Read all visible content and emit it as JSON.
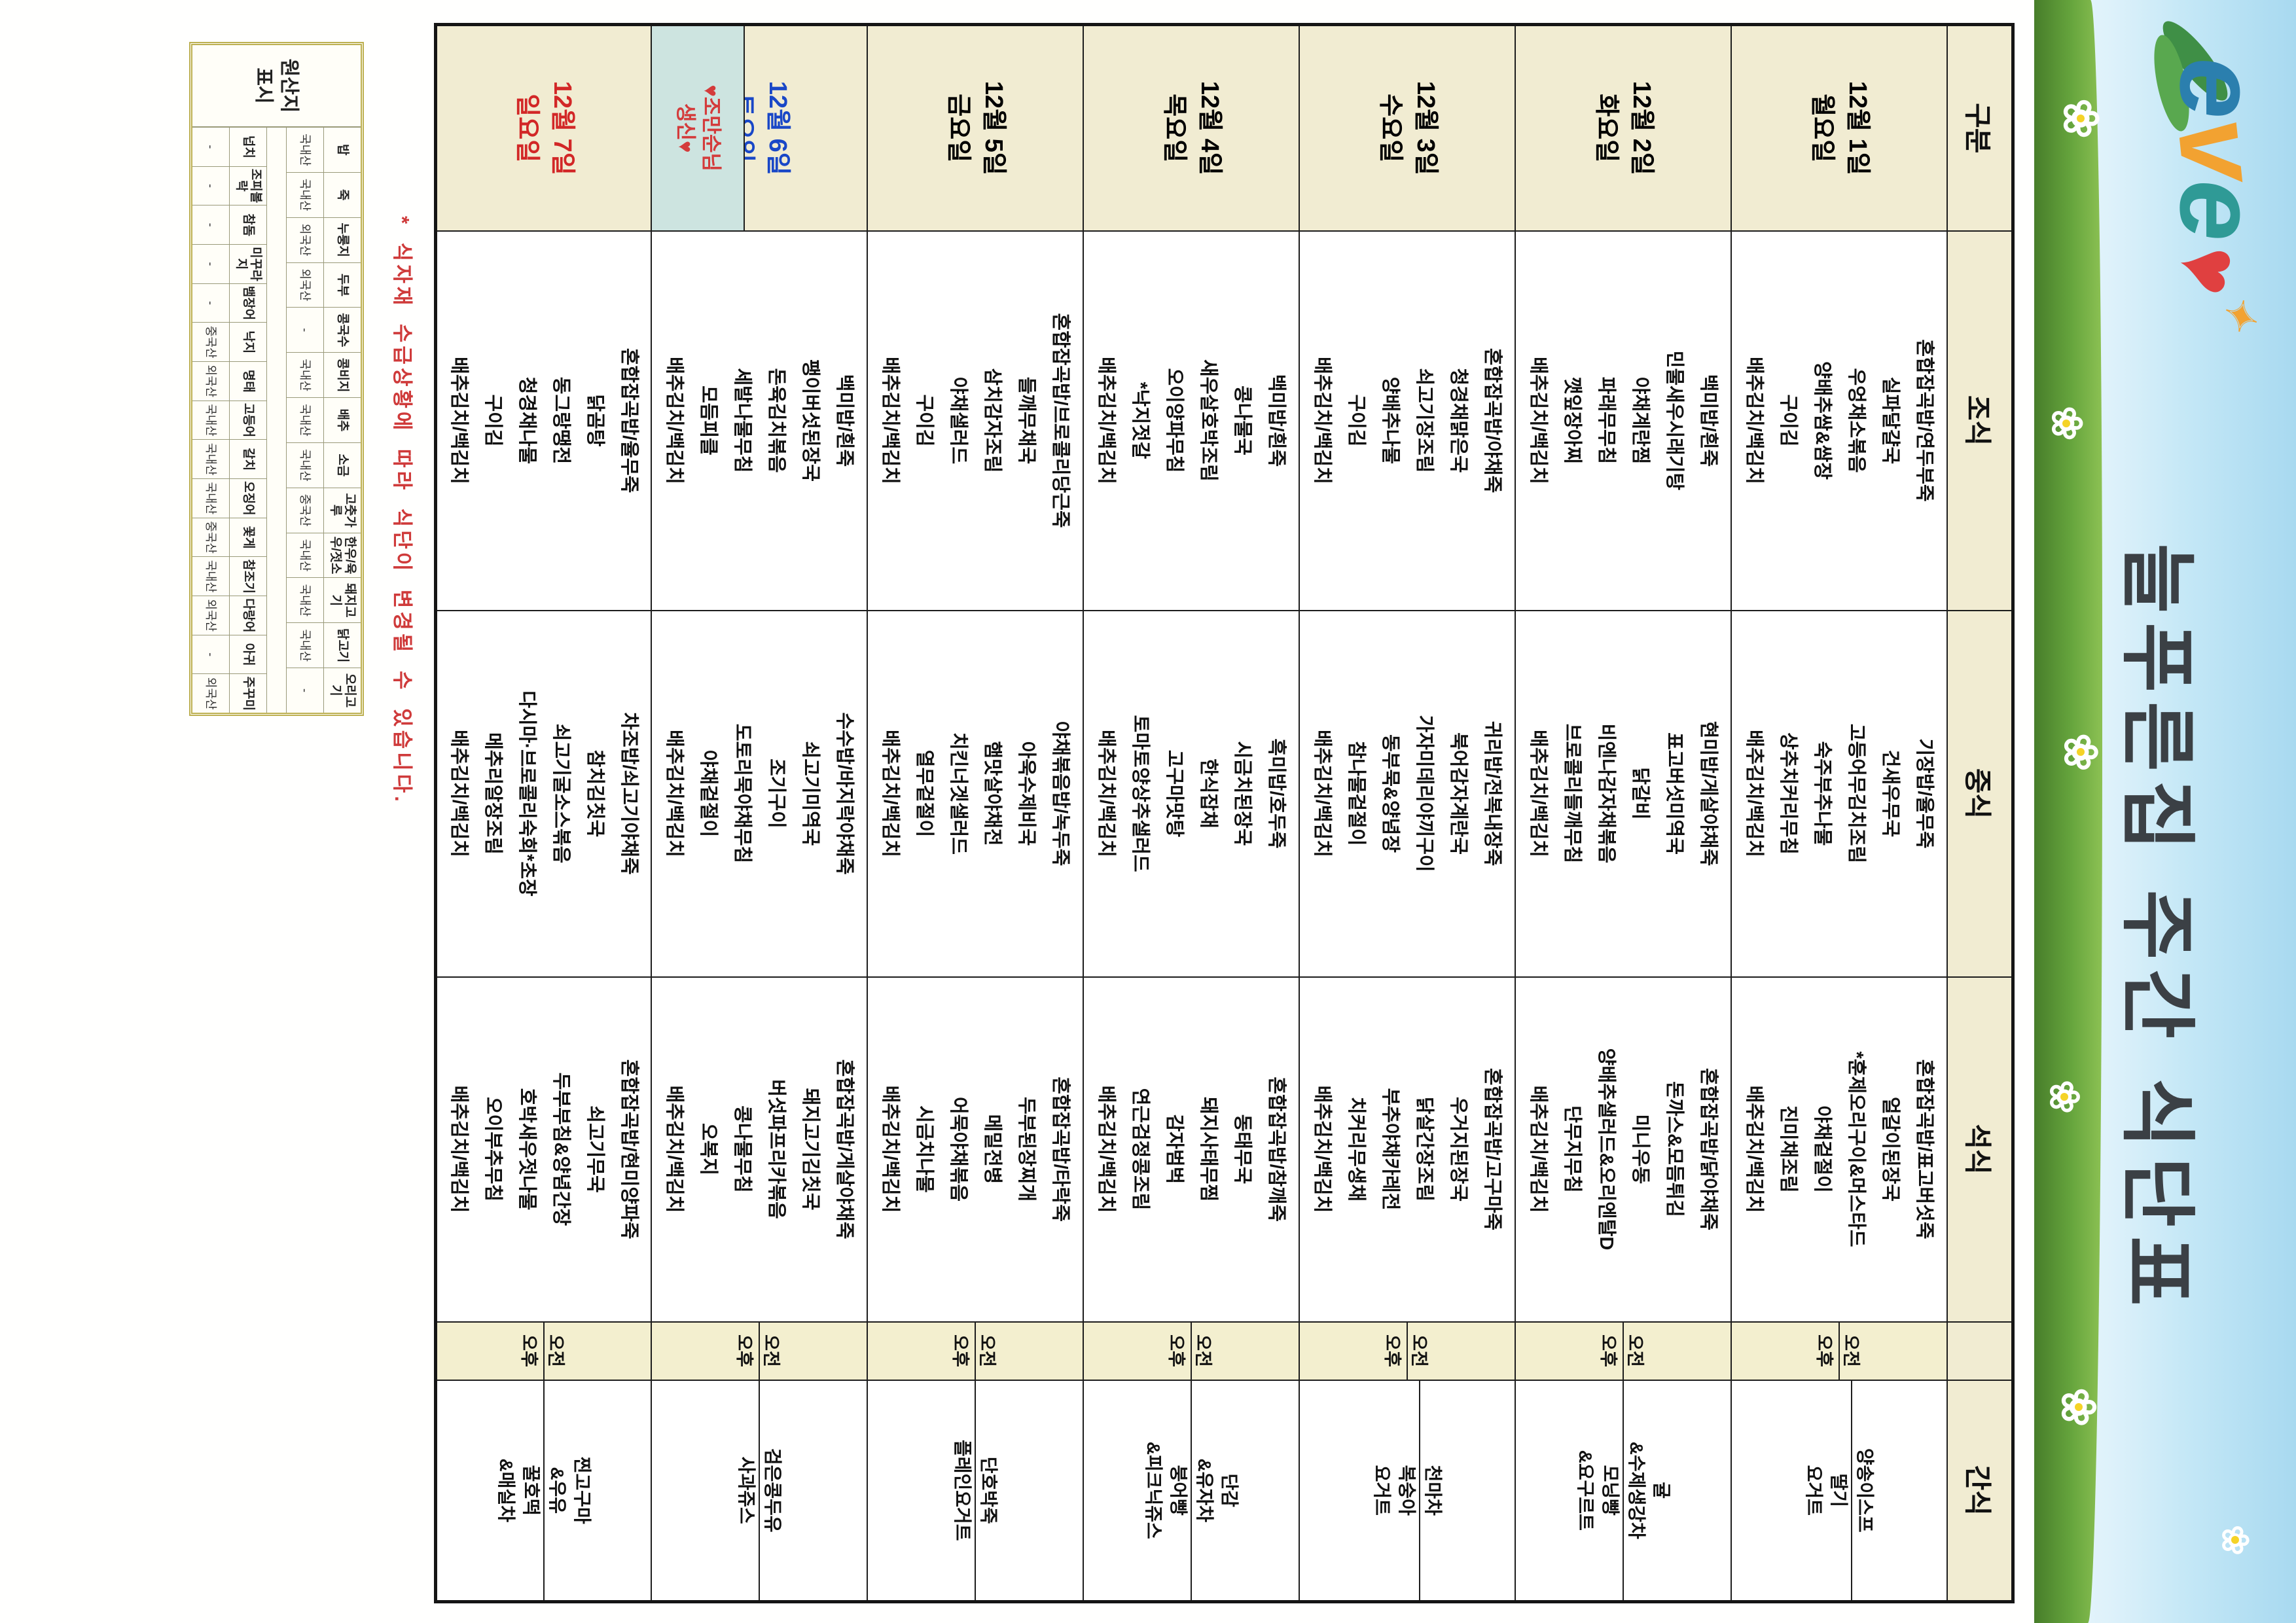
{
  "banner": {
    "logo": {
      "letters": [
        "e",
        "v",
        "e"
      ],
      "heart": "♥",
      "spark": "✦"
    },
    "title": "늘푸른집 주간 식단표"
  },
  "table_header": {
    "corner": "구분",
    "breakfast": "조식",
    "lunch": "중식",
    "dinner": "석식",
    "snack": "간식",
    "am": "오전",
    "pm": "오후"
  },
  "days": [
    {
      "date": "12월 1일",
      "weekday": "월요일",
      "color": "weekday-black",
      "breakfast": [
        "혼합잡곡밥/연두부죽",
        "실파달걀국",
        "우엉채소볶음",
        "양배추쌈&쌈장",
        "구이김",
        "배추김치/백김치"
      ],
      "lunch": [
        "기장밥/율무죽",
        "건새우무국",
        "고등어무김치조림",
        "숙주부추나물",
        "상추치커리무침",
        "배추김치/백김치"
      ],
      "dinner": [
        "혼합잡곡밥/표고버섯죽",
        "얼갈이된장국",
        "*훈제오리구이&머스타드",
        "야채겉절이",
        "진미채조림",
        "배추김치/백김치"
      ],
      "snack_am": [
        "양송이스프"
      ],
      "snack_pm": [
        "딸기",
        "요거트"
      ],
      "birthday": null
    },
    {
      "date": "12월 2일",
      "weekday": "화요일",
      "color": "weekday-black",
      "breakfast": [
        "백미밥/흰죽",
        "민물새우시래기탕",
        "야채계란찜",
        "파래무무침",
        "깻잎장아찌",
        "배추김치/백김치"
      ],
      "lunch": [
        "현미밥/게살야채죽",
        "표고버섯미역국",
        "닭갈비",
        "비엔나감자채볶음",
        "브로콜리들깨무침",
        "배추김치/백김치"
      ],
      "dinner": [
        "혼합잡곡밥/닭야채죽",
        "돈까스&모듬튀김",
        "미니우동",
        "양배추샐러드&오리엔탈D",
        "단무지무침",
        "배추김치/백김치"
      ],
      "snack_am": [
        "귤",
        "&수제생강차"
      ],
      "snack_pm": [
        "모닝빵",
        "&요구르트"
      ],
      "birthday": null
    },
    {
      "date": "12월 3일",
      "weekday": "수요일",
      "color": "weekday-black",
      "breakfast": [
        "혼합잡곡밥/야채죽",
        "청경채맑은국",
        "쇠고기장조림",
        "양배추나물",
        "구이김",
        "배추김치/백김치"
      ],
      "lunch": [
        "귀리밥/전복내장죽",
        "북어감자계란국",
        "가자미데리야끼구이",
        "동부묵&양념장",
        "참나물겉절이",
        "배추김치/백김치"
      ],
      "dinner": [
        "혼합잡곡밥/고구마죽",
        "우거지된장국",
        "닭살간장조림",
        "부추야채카레전",
        "치커리무생채",
        "배추김치/백김치"
      ],
      "snack_am": [
        "천마차"
      ],
      "snack_pm": [
        "복숭아",
        "요거트"
      ],
      "birthday": null
    },
    {
      "date": "12월 4일",
      "weekday": "목요일",
      "color": "weekday-black",
      "breakfast": [
        "백미밥/흰죽",
        "콩나물국",
        "새우살호박조림",
        "오이양파무침",
        "*낙지젓갈",
        "배추김치/백김치"
      ],
      "lunch": [
        "흑미밥/호두죽",
        "시금치된장국",
        "한식잡채",
        "고구마맛탕",
        "토마토양상추샐러드",
        "배추김치/백김치"
      ],
      "dinner": [
        "혼합잡곡밥/참깨죽",
        "동태무국",
        "돼지사태무찜",
        "감자범벅",
        "연근검정콩조림",
        "배추김치/백김치"
      ],
      "snack_am": [
        "단감",
        "&유자차"
      ],
      "snack_pm": [
        "붕어빵",
        "&피크닉쥬스"
      ],
      "birthday": null
    },
    {
      "date": "12월 5일",
      "weekday": "금요일",
      "color": "weekday-black",
      "breakfast": [
        "혼합잡곡밥/브로콜리당근죽",
        "들깨무채국",
        "삼치감자조림",
        "야채샐러드",
        "구이김",
        "배추김치/백김치"
      ],
      "lunch": [
        "야채볶음밥/녹두죽",
        "아욱수제비국",
        "햄맛살야채전",
        "치킨너겟샐러드",
        "열무겉절이",
        "배추김치/백김치"
      ],
      "dinner": [
        "혼합잡곡밥/타락죽",
        "두부된장찌개",
        "메밀전병",
        "어묵야채볶음",
        "시금치나물",
        "배추김치/백김치"
      ],
      "snack_am": [
        "단호박죽"
      ],
      "snack_pm": [
        "플레인요거트"
      ],
      "birthday": null
    },
    {
      "date": "12월 6일",
      "weekday": "토요일",
      "color": "weekday-sat",
      "breakfast": [
        "백미밥/흰죽",
        "팽이버섯된장국",
        "돈육김치볶음",
        "세발나물무침",
        "모듬피클",
        "배추김치/백김치"
      ],
      "lunch": [
        "수수밥/바지락야채죽",
        "쇠고기미역국",
        "조기구이",
        "도토리묵야채무침",
        "야채겉절이",
        "배추김치/백김치"
      ],
      "dinner": [
        "혼합잡곡밥/게살야채죽",
        "돼지고기김칫국",
        "버섯파프리카볶음",
        "콩나물무침",
        "오복지",
        "배추김치/백김치"
      ],
      "snack_am": [
        "검은콩두유"
      ],
      "snack_pm": [
        "사과쥬스"
      ],
      "birthday": [
        "♥조만순님",
        "생신♥"
      ]
    },
    {
      "date": "12월 7일",
      "weekday": "일요일",
      "color": "weekday-sun",
      "breakfast": [
        "혼합잡곡밥/율무죽",
        "닭곰탕",
        "동그랑땡전",
        "청경채나물",
        "구이김",
        "배추김치/백김치"
      ],
      "lunch": [
        "차조밥/쇠고기야채죽",
        "참치김칫국",
        "쇠고기굴소스볶음",
        "다시마·브로콜리숙회*초장",
        "메추리알장조림",
        "배추김치/백김치"
      ],
      "dinner": [
        "혼합잡곡밥/현미양파죽",
        "쇠고기무국",
        "두부부침&양념간장",
        "호박새우젓나물",
        "오이부추무침",
        "배추김치/백김치"
      ],
      "snack_am": [
        "찐고구마",
        "&우유"
      ],
      "snack_pm": [
        "꿀호떡",
        "&매실차"
      ],
      "birthday": null
    }
  ],
  "footer_note": "* 식자재 수급상황에 따라 식단이 변경될 수 있습니다.",
  "origin_box": {
    "title": "원산지\n표시",
    "group1_items": [
      "밥",
      "죽",
      "누룽지",
      "두부",
      "콩국수",
      "콩비지",
      "배추",
      "소금",
      "고춧가루",
      "한우/육우/젓소",
      "돼지고기",
      "닭고기",
      "오리고기"
    ],
    "group1_origins": [
      "국내산",
      "국내산",
      "외국산",
      "외국산",
      "-",
      "국내산",
      "국내산",
      "국내산",
      "중국산",
      "국내산",
      "국내산",
      "국내산",
      "-"
    ],
    "group2_items": [
      "넙치",
      "조피볼락",
      "참돔",
      "미꾸라지",
      "뱀장어",
      "낙지",
      "명태",
      "고등어",
      "갈치",
      "오징어",
      "꽃게",
      "참조기",
      "다랑어",
      "아귀",
      "주꾸미"
    ],
    "group2_origins": [
      "-",
      "-",
      "-",
      "-",
      "-",
      "중국산",
      "외국산",
      "국내산",
      "국내산",
      "국내산",
      "중국산",
      "국내산",
      "외국산",
      "-",
      "외국산"
    ]
  },
  "colors": {
    "weekday_saturday": "#1947c7",
    "weekday_sunday": "#d22727",
    "header_beige": "#f1ecd2",
    "ampm_yellow": "#f3efcf",
    "birthday_teal": "#cde4e0",
    "note_red": "#cf3a3a"
  }
}
